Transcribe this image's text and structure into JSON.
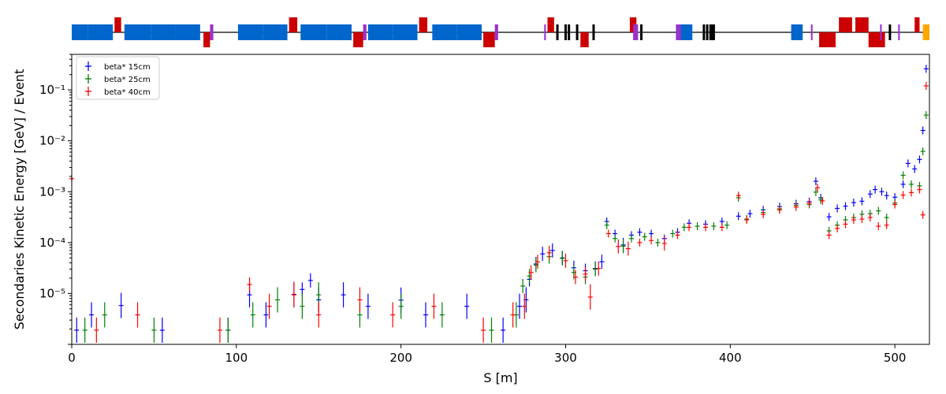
{
  "colors": {
    "series_15cm": "#0000ff",
    "series_25cm": "#008000",
    "series_40cm": "#ff0000",
    "dipole": "#0066cc",
    "quadrupole": "#cc0000",
    "sextupole": "#9933cc",
    "collimator": "#000000",
    "rf": "#ffa500",
    "beamline": "#000000"
  },
  "beamline_synoptic": {
    "dipoles": [
      [
        0,
        10
      ],
      [
        10,
        25
      ],
      [
        32,
        48
      ],
      [
        48,
        63
      ],
      [
        63,
        78
      ],
      [
        101,
        116
      ],
      [
        116,
        131
      ],
      [
        139,
        155
      ],
      [
        155,
        170
      ],
      [
        180,
        195
      ],
      [
        195,
        210
      ],
      [
        219,
        234
      ],
      [
        234,
        249
      ],
      [
        369,
        377
      ],
      [
        437,
        444
      ]
    ],
    "quadrupoles_up": [
      [
        26,
        30
      ],
      [
        132,
        137
      ],
      [
        211,
        216
      ],
      [
        289,
        293
      ],
      [
        339,
        343
      ],
      [
        466,
        474
      ],
      [
        476,
        484
      ],
      [
        512,
        515
      ]
    ],
    "quadrupoles_down": [
      [
        80,
        84
      ],
      [
        171,
        177
      ],
      [
        250,
        257
      ],
      [
        309,
        314
      ],
      [
        454,
        464
      ],
      [
        484,
        494
      ]
    ],
    "sextupoles": [
      [
        84,
        86
      ],
      [
        177,
        179
      ],
      [
        257,
        259
      ],
      [
        287,
        288
      ],
      [
        341,
        344
      ],
      [
        367,
        370
      ],
      [
        449,
        450
      ],
      [
        491,
        492
      ],
      [
        502,
        503
      ]
    ],
    "collimators": [
      295,
      300,
      302,
      307,
      317,
      346,
      384,
      386,
      388,
      389,
      390,
      497
    ],
    "rf": [
      [
        517,
        521
      ]
    ],
    "s_max": 521
  },
  "chart_data": {
    "type": "scatter",
    "title": "",
    "xlabel": "S [m]",
    "ylabel": "Secondaries Kinetic Energy [GeV] / Event",
    "xlim": [
      0,
      521
    ],
    "ylim": [
      1e-06,
      0.5
    ],
    "y_scale": "log",
    "x_ticks": [
      0,
      100,
      200,
      300,
      400,
      500
    ],
    "x_tick_labels": [
      "0",
      "100",
      "200",
      "300",
      "400",
      "500"
    ],
    "y_ticks": [
      1e-05,
      0.0001,
      0.001,
      0.01,
      0.1
    ],
    "y_tick_labels": [
      "10⁻⁵",
      "10⁻⁴",
      "10⁻³",
      "10⁻²",
      "10⁻¹"
    ],
    "legend": {
      "position": "top-left",
      "entries": [
        "beta* 15cm",
        "beta* 25cm",
        "beta* 40cm"
      ]
    },
    "grid": false,
    "series": [
      {
        "name": "beta* 15cm",
        "points": [
          [
            3,
            1.9e-06
          ],
          [
            12,
            3.8e-06
          ],
          [
            30,
            5.8e-06
          ],
          [
            55,
            1.9e-06
          ],
          [
            95,
            1.9e-06
          ],
          [
            108,
            9.4e-06
          ],
          [
            118,
            3.8e-06
          ],
          [
            135,
            9.6e-06
          ],
          [
            140,
            1.2e-05
          ],
          [
            145,
            1.8e-05
          ],
          [
            150,
            7.5e-06
          ],
          [
            165,
            9.4e-06
          ],
          [
            180,
            5.6e-06
          ],
          [
            200,
            7.4e-06
          ],
          [
            215,
            3.8e-06
          ],
          [
            240,
            5.6e-06
          ],
          [
            262,
            1.9e-06
          ],
          [
            272,
            5.6e-06
          ],
          [
            276,
            7.5e-06
          ],
          [
            278,
            1.9e-05
          ],
          [
            282,
            3.8e-05
          ],
          [
            286,
            6e-05
          ],
          [
            292,
            7e-05
          ],
          [
            298,
            5e-05
          ],
          [
            305,
            3.2e-05
          ],
          [
            312,
            2.8e-05
          ],
          [
            318,
            3.1e-05
          ],
          [
            322,
            4.2e-05
          ],
          [
            325,
            0.00026
          ],
          [
            330,
            0.00015
          ],
          [
            335,
            9e-05
          ],
          [
            340,
            0.00014
          ],
          [
            345,
            0.00016
          ],
          [
            352,
            0.00015
          ],
          [
            360,
            0.00012
          ],
          [
            368,
            0.00016
          ],
          [
            375,
            0.00024
          ],
          [
            385,
            0.00023
          ],
          [
            395,
            0.00026
          ],
          [
            405,
            0.00033
          ],
          [
            412,
            0.00037
          ],
          [
            420,
            0.00044
          ],
          [
            430,
            0.00051
          ],
          [
            440,
            0.00058
          ],
          [
            448,
            0.00064
          ],
          [
            452,
            0.0016
          ],
          [
            455,
            0.00076
          ],
          [
            460,
            0.00032
          ],
          [
            465,
            0.00047
          ],
          [
            470,
            0.00052
          ],
          [
            475,
            0.00061
          ],
          [
            480,
            0.00065
          ],
          [
            485,
            0.0009
          ],
          [
            488,
            0.0011
          ],
          [
            492,
            0.001
          ],
          [
            495,
            0.00084
          ],
          [
            500,
            0.00078
          ],
          [
            505,
            0.0014
          ],
          [
            508,
            0.0036
          ],
          [
            512,
            0.0028
          ],
          [
            515,
            0.0043
          ],
          [
            517,
            0.016
          ],
          [
            519,
            0.26
          ]
        ]
      },
      {
        "name": "beta* 25cm",
        "points": [
          [
            8,
            1.9e-06
          ],
          [
            20,
            3.8e-06
          ],
          [
            50,
            1.9e-06
          ],
          [
            95,
            1.9e-06
          ],
          [
            110,
            3.8e-06
          ],
          [
            125,
            7.5e-06
          ],
          [
            140,
            5.6e-06
          ],
          [
            150,
            9.4e-06
          ],
          [
            175,
            3.8e-06
          ],
          [
            200,
            5.6e-06
          ],
          [
            225,
            3.8e-06
          ],
          [
            255,
            1.9e-06
          ],
          [
            270,
            3.8e-06
          ],
          [
            274,
            1.4e-05
          ],
          [
            278,
            2.2e-05
          ],
          [
            282,
            3.6e-05
          ],
          [
            290,
            5.3e-05
          ],
          [
            298,
            4.9e-05
          ],
          [
            305,
            2.6e-05
          ],
          [
            312,
            2.1e-05
          ],
          [
            318,
            3e-05
          ],
          [
            325,
            0.00022
          ],
          [
            330,
            0.00012
          ],
          [
            335,
            8.5e-05
          ],
          [
            340,
            0.00012
          ],
          [
            348,
            0.00013
          ],
          [
            356,
            0.0001
          ],
          [
            365,
            0.00015
          ],
          [
            372,
            0.0002
          ],
          [
            380,
            0.00021
          ],
          [
            390,
            0.00021
          ],
          [
            398,
            0.00022
          ],
          [
            405,
            0.00076
          ],
          [
            410,
            0.00029
          ],
          [
            420,
            0.00039
          ],
          [
            430,
            0.00046
          ],
          [
            440,
            0.00054
          ],
          [
            448,
            0.00056
          ],
          [
            452,
            0.00098
          ],
          [
            455,
            0.00069
          ],
          [
            460,
            0.00017
          ],
          [
            465,
            0.00022
          ],
          [
            470,
            0.00028
          ],
          [
            475,
            0.00031
          ],
          [
            480,
            0.00036
          ],
          [
            485,
            0.00037
          ],
          [
            490,
            0.00042
          ],
          [
            495,
            0.00031
          ],
          [
            500,
            0.0006
          ],
          [
            505,
            0.0021
          ],
          [
            510,
            0.0014
          ],
          [
            515,
            0.0013
          ],
          [
            517,
            0.0062
          ],
          [
            519,
            0.032
          ]
        ]
      },
      {
        "name": "beta* 40cm",
        "points": [
          [
            0,
            0.0018
          ],
          [
            15,
            1.9e-06
          ],
          [
            40,
            3.8e-06
          ],
          [
            90,
            1.9e-06
          ],
          [
            108,
            1.5e-05
          ],
          [
            120,
            5.6e-06
          ],
          [
            135,
            9.4e-06
          ],
          [
            150,
            3.8e-06
          ],
          [
            175,
            7.5e-06
          ],
          [
            195,
            3.8e-06
          ],
          [
            220,
            5.6e-06
          ],
          [
            250,
            1.9e-06
          ],
          [
            268,
            3.8e-06
          ],
          [
            275,
            5.6e-06
          ],
          [
            279,
            2.6e-05
          ],
          [
            283,
            4.2e-05
          ],
          [
            290,
            6.3e-05
          ],
          [
            300,
            4.4e-05
          ],
          [
            306,
            2.1e-05
          ],
          [
            312,
            2.4e-05
          ],
          [
            315,
            8.5e-06
          ],
          [
            320,
            3.1e-05
          ],
          [
            326,
            0.00015
          ],
          [
            332,
            8.4e-05
          ],
          [
            338,
            7.6e-05
          ],
          [
            345,
            0.0001
          ],
          [
            352,
            0.00011
          ],
          [
            360,
            9.6e-05
          ],
          [
            368,
            0.00014
          ],
          [
            375,
            0.0002
          ],
          [
            385,
            0.0002
          ],
          [
            395,
            0.0002
          ],
          [
            405,
            0.00084
          ],
          [
            410,
            0.00028
          ],
          [
            420,
            0.00036
          ],
          [
            430,
            0.00044
          ],
          [
            440,
            0.0005
          ],
          [
            448,
            0.0006
          ],
          [
            453,
            0.0012
          ],
          [
            456,
            0.00066
          ],
          [
            460,
            0.00014
          ],
          [
            465,
            0.00019
          ],
          [
            470,
            0.00023
          ],
          [
            475,
            0.00028
          ],
          [
            480,
            0.00029
          ],
          [
            485,
            0.00031
          ],
          [
            490,
            0.00021
          ],
          [
            495,
            0.00022
          ],
          [
            500,
            0.00056
          ],
          [
            505,
            0.00086
          ],
          [
            510,
            0.00096
          ],
          [
            515,
            0.0011
          ],
          [
            517,
            0.00035
          ],
          [
            519,
            0.12
          ]
        ]
      }
    ]
  }
}
